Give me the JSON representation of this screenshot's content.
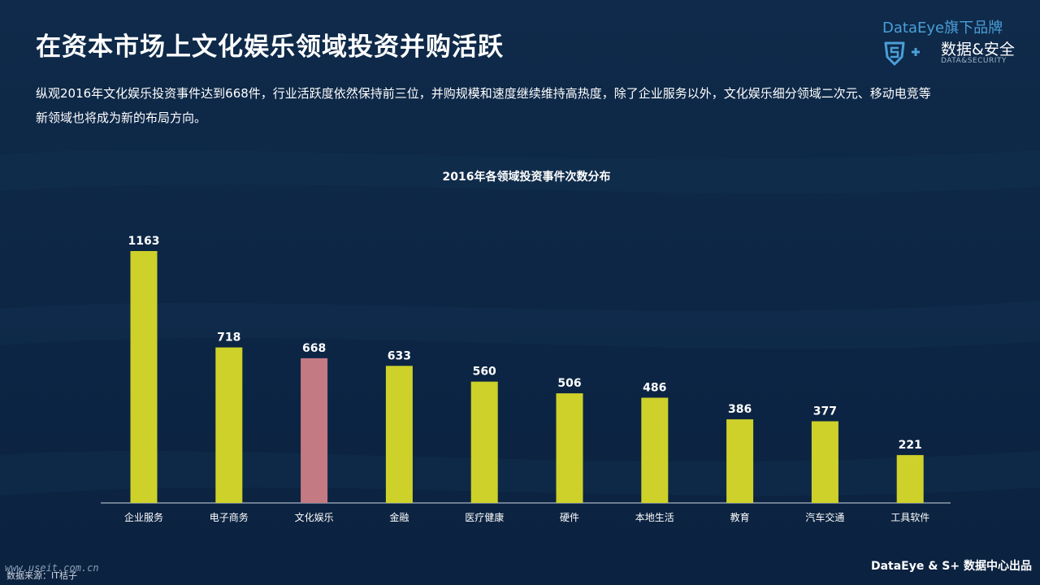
{
  "header": {
    "title": "在资本市场上文化娱乐领域投资并购活跃",
    "description": "纵观2016年文化娱乐投资事件达到668件，行业活跃度依然保持前三位，并购规模和速度继续维持高热度，除了企业服务以外，文化娱乐细分领域二次元、移动电竞等新领域也将成为新的布局方向。"
  },
  "brand": {
    "top_label": "DataEye旗下品牌",
    "name": "数据&安全",
    "sub": "DATA&SECURITY",
    "logo_icon": "s-plus-shield-icon",
    "accent": "#4a9fd8"
  },
  "chart_data": {
    "type": "bar",
    "title": "2016年各领域投资事件次数分布",
    "categories": [
      "企业服务",
      "电子商务",
      "文化娱乐",
      "金融",
      "医疗健康",
      "硬件",
      "本地生活",
      "教育",
      "汽车交通",
      "工具软件"
    ],
    "values": [
      1163,
      718,
      668,
      633,
      560,
      506,
      486,
      386,
      377,
      221
    ],
    "highlight_index": 2,
    "bar_color": "#cdd12a",
    "highlight_color": "#c47a82",
    "ylim": [
      0,
      1163
    ],
    "grid": false,
    "legend": "none"
  },
  "footer": {
    "credit": "DataEye & S+ 数据中心出品",
    "source": "数据来源：IT桔子",
    "watermark": "www.useit.com.cn"
  }
}
